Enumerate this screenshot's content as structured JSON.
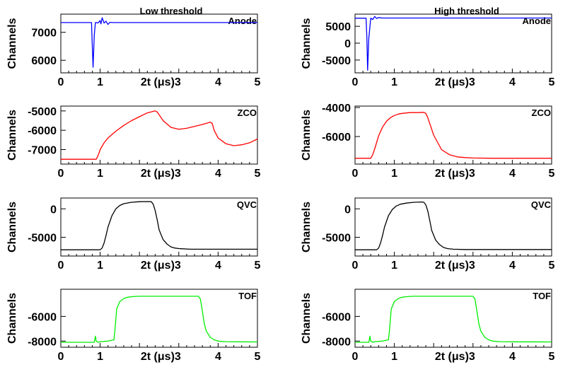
{
  "figure": {
    "column_titles": [
      "Low threshold",
      "High threshold"
    ]
  },
  "chart_data": [
    {
      "id": "low-anode",
      "column": "Low threshold",
      "type": "line",
      "title": "Anode",
      "xlabel": "2t (μs)3",
      "ylabel": "Channels",
      "xlim": [
        0,
        5
      ],
      "ylim": [
        5550,
        7650
      ],
      "xticks": [
        "0",
        "1",
        "",
        "",
        "4",
        "5"
      ],
      "yticks": [
        6000,
        7000
      ],
      "color": "#0000ff",
      "series": [
        {
          "name": "Anode",
          "x": [
            0,
            0.78,
            0.8,
            0.82,
            0.85,
            0.88,
            0.95,
            1.0,
            1.02,
            1.05,
            1.1,
            1.15,
            1.2,
            1.25,
            1.3,
            5
          ],
          "y": [
            7350,
            7350,
            6500,
            5750,
            6900,
            7350,
            7340,
            7420,
            7300,
            7520,
            7330,
            7400,
            7280,
            7360,
            7350,
            7350
          ]
        }
      ]
    },
    {
      "id": "high-anode",
      "column": "High threshold",
      "type": "line",
      "title": "Anode",
      "xlabel": "2t (μs)3",
      "ylabel": "Channels",
      "xlim": [
        0,
        5
      ],
      "ylim": [
        -8800,
        8600
      ],
      "xticks": [
        "0",
        "1",
        "",
        "",
        "4",
        "5"
      ],
      "yticks": [
        -5000,
        0,
        5000
      ],
      "color": "#0000ff",
      "series": [
        {
          "name": "Anode",
          "x": [
            0,
            0.28,
            0.3,
            0.32,
            0.35,
            0.4,
            0.45,
            0.5,
            0.55,
            0.6,
            0.7,
            5
          ],
          "y": [
            7400,
            7400,
            2000,
            -8000,
            1500,
            7400,
            7000,
            7900,
            7300,
            7600,
            7450,
            7450
          ]
        }
      ]
    },
    {
      "id": "low-zco",
      "column": "Low threshold",
      "type": "line",
      "title": "ZCO",
      "xlabel": "2t (μs)3",
      "ylabel": "Channels",
      "xlim": [
        0,
        5
      ],
      "ylim": [
        -7750,
        -4750
      ],
      "xticks": [
        "0",
        "1",
        "",
        "",
        "4",
        "5"
      ],
      "yticks": [
        -7000,
        -6000,
        -5000
      ],
      "color": "#ff0000",
      "series": [
        {
          "name": "ZCO",
          "x": [
            0,
            0.9,
            0.95,
            1.0,
            1.1,
            1.2,
            1.4,
            1.6,
            1.8,
            2.0,
            2.2,
            2.4,
            2.45,
            2.6,
            2.8,
            3.0,
            3.2,
            3.4,
            3.6,
            3.8,
            3.85,
            3.9,
            4.0,
            4.2,
            4.4,
            4.6,
            4.8,
            5.0
          ],
          "y": [
            -7500,
            -7500,
            -7300,
            -7000,
            -6650,
            -6400,
            -6050,
            -5750,
            -5500,
            -5300,
            -5100,
            -5000,
            -5050,
            -5500,
            -5850,
            -5950,
            -5900,
            -5800,
            -5700,
            -5580,
            -5650,
            -6000,
            -6400,
            -6700,
            -6800,
            -6750,
            -6650,
            -6450
          ]
        }
      ]
    },
    {
      "id": "high-zco",
      "column": "High threshold",
      "type": "line",
      "title": "ZCO",
      "xlabel": "2t (μs)3",
      "ylabel": "Channels",
      "xlim": [
        0,
        5
      ],
      "ylim": [
        -7900,
        -3900
      ],
      "xticks": [
        "0",
        "1",
        "",
        "",
        "4",
        "5"
      ],
      "yticks": [
        -6000,
        -4000
      ],
      "color": "#ff0000",
      "series": [
        {
          "name": "ZCO",
          "x": [
            0,
            0.4,
            0.45,
            0.5,
            0.6,
            0.7,
            0.8,
            0.9,
            1.0,
            1.1,
            1.2,
            1.4,
            1.6,
            1.75,
            1.8,
            1.85,
            1.9,
            2.0,
            2.2,
            2.4,
            2.6,
            2.8,
            3.0,
            3.5,
            4.0,
            5.0
          ],
          "y": [
            -7500,
            -7500,
            -7250,
            -6850,
            -5950,
            -5350,
            -4950,
            -4700,
            -4550,
            -4450,
            -4400,
            -4350,
            -4350,
            -4330,
            -4400,
            -4700,
            -5100,
            -5900,
            -6900,
            -7250,
            -7400,
            -7450,
            -7480,
            -7500,
            -7500,
            -7500
          ]
        }
      ]
    },
    {
      "id": "low-qvc",
      "column": "Low threshold",
      "type": "line",
      "title": "QVC",
      "xlabel": "2t (μs)3",
      "ylabel": "Channels",
      "xlim": [
        0,
        5
      ],
      "ylim": [
        -8300,
        1900
      ],
      "xticks": [
        "0",
        "1",
        "",
        "",
        "4",
        "5"
      ],
      "yticks": [
        -5000,
        0
      ],
      "color": "#000000",
      "series": [
        {
          "name": "QVC",
          "x": [
            0,
            1.0,
            1.05,
            1.1,
            1.15,
            1.2,
            1.3,
            1.4,
            1.5,
            1.6,
            1.8,
            2.0,
            2.2,
            2.3,
            2.35,
            2.4,
            2.45,
            2.5,
            2.6,
            2.7,
            2.8,
            2.9,
            3.0,
            3.3,
            5.0
          ],
          "y": [
            -7200,
            -7200,
            -6900,
            -6000,
            -4700,
            -3200,
            -1200,
            0,
            600,
            900,
            1150,
            1250,
            1280,
            1250,
            800,
            -300,
            -1900,
            -3700,
            -5400,
            -6200,
            -6700,
            -6900,
            -7000,
            -7100,
            -7100
          ]
        }
      ]
    },
    {
      "id": "high-qvc",
      "column": "High threshold",
      "type": "line",
      "title": "QVC",
      "xlabel": "2t (μs)3",
      "ylabel": "Channels",
      "xlim": [
        0,
        5
      ],
      "ylim": [
        -8300,
        1900
      ],
      "xticks": [
        "0",
        "1",
        "",
        "",
        "4",
        "5"
      ],
      "yticks": [
        -5000,
        0
      ],
      "color": "#000000",
      "series": [
        {
          "name": "QVC",
          "x": [
            0,
            0.55,
            0.6,
            0.65,
            0.7,
            0.75,
            0.85,
            0.95,
            1.05,
            1.15,
            1.3,
            1.5,
            1.7,
            1.75,
            1.8,
            1.85,
            1.9,
            1.95,
            2.05,
            2.15,
            2.25,
            2.35,
            2.5,
            2.8,
            5.0
          ],
          "y": [
            -7200,
            -7200,
            -6900,
            -6000,
            -4700,
            -3200,
            -1200,
            -100,
            500,
            800,
            1000,
            1150,
            1200,
            1150,
            700,
            -400,
            -2000,
            -3800,
            -5500,
            -6300,
            -6800,
            -7000,
            -7100,
            -7150,
            -7150
          ]
        }
      ]
    },
    {
      "id": "low-tof",
      "column": "Low threshold",
      "type": "line",
      "title": "TOF",
      "xlabel": "2t (μs)3",
      "ylabel": "Channels",
      "xlim": [
        0,
        5
      ],
      "ylim": [
        -8500,
        -3800
      ],
      "xticks": [
        "0",
        "1",
        "",
        "",
        "4",
        "5"
      ],
      "yticks": [
        -8000,
        -6000
      ],
      "color": "#00ee00",
      "series": [
        {
          "name": "TOF",
          "x": [
            0,
            0.85,
            0.88,
            0.9,
            0.95,
            1.0,
            1.2,
            1.35,
            1.38,
            1.42,
            1.5,
            1.6,
            1.7,
            1.8,
            1.9,
            2.0,
            2.5,
            3.0,
            3.5,
            3.55,
            3.6,
            3.65,
            3.7,
            3.8,
            3.9,
            4.0,
            4.2,
            4.5,
            5.0
          ],
          "y": [
            -8100,
            -8100,
            -7600,
            -8000,
            -8100,
            -8050,
            -8000,
            -7900,
            -7000,
            -5400,
            -4800,
            -4550,
            -4450,
            -4400,
            -4380,
            -4370,
            -4370,
            -4370,
            -4370,
            -4600,
            -5600,
            -6600,
            -7200,
            -7700,
            -7900,
            -8000,
            -8050,
            -8060,
            -8070
          ]
        }
      ]
    },
    {
      "id": "high-tof",
      "column": "High threshold",
      "type": "line",
      "title": "TOF",
      "xlabel": "2t (μs)3",
      "ylabel": "Channels",
      "xlim": [
        0,
        5
      ],
      "ylim": [
        -8500,
        -3800
      ],
      "xticks": [
        "0",
        "1",
        "",
        "",
        "4",
        "5"
      ],
      "yticks": [
        -8000,
        -6000
      ],
      "color": "#00ee00",
      "series": [
        {
          "name": "TOF",
          "x": [
            0,
            0.35,
            0.38,
            0.4,
            0.45,
            0.5,
            0.7,
            0.85,
            0.88,
            0.92,
            1.0,
            1.1,
            1.2,
            1.3,
            1.4,
            1.5,
            2.0,
            2.5,
            3.0,
            3.05,
            3.1,
            3.15,
            3.2,
            3.3,
            3.4,
            3.5,
            3.7,
            4.0,
            5.0
          ],
          "y": [
            -8100,
            -8100,
            -7600,
            -8000,
            -8100,
            -8050,
            -8000,
            -7900,
            -7000,
            -5400,
            -4800,
            -4550,
            -4450,
            -4400,
            -4380,
            -4370,
            -4370,
            -4370,
            -4370,
            -4600,
            -5600,
            -6600,
            -7200,
            -7700,
            -7900,
            -8000,
            -8050,
            -8060,
            -8070
          ]
        }
      ]
    }
  ]
}
